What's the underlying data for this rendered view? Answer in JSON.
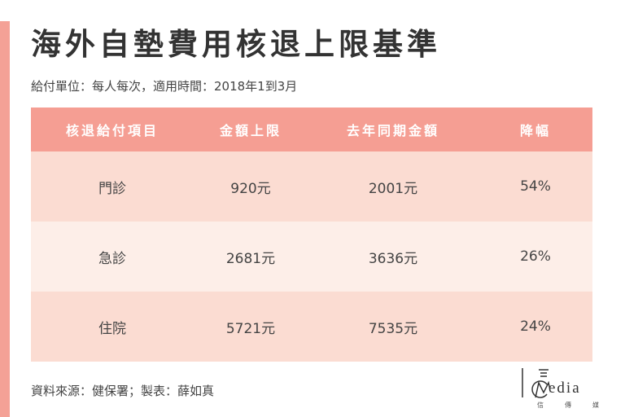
{
  "title": "海外自墊費用核退上限基準",
  "subtitle": "給付單位：每人每次，適用時間：2018年1到3月",
  "table": {
    "headers": [
      "核退給付項目",
      "金額上限",
      "去年同期金額",
      "降幅"
    ],
    "rows": [
      [
        "門診",
        "920元",
        "2001元",
        "54%"
      ],
      [
        "急診",
        "2681元",
        "3636元",
        "26%"
      ],
      [
        "住院",
        "5721元",
        "7535元",
        "24%"
      ]
    ]
  },
  "source": "資料來源：健保署；製表：薛如真",
  "logo": {
    "wordmark": "edia",
    "subtitle": "信傳媒"
  },
  "colors": {
    "accent": "#f4a196",
    "header_bg": "#f59e93",
    "row_dark": "#fbdcd2",
    "row_light": "#fdeee8"
  }
}
